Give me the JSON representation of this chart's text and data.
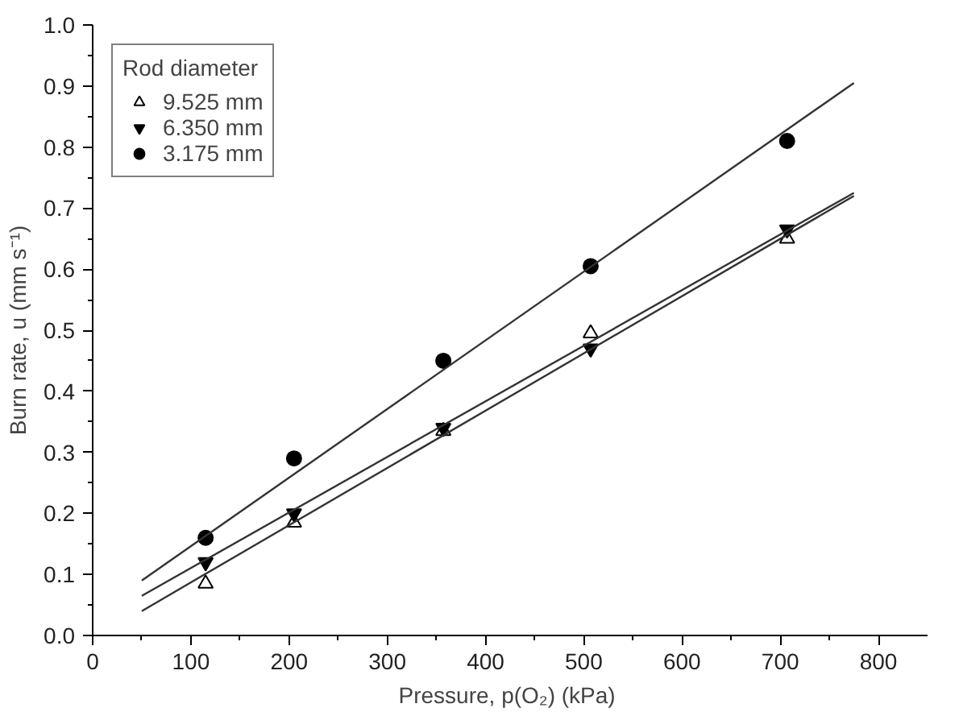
{
  "chart_data": {
    "type": "scatter",
    "xlabel": "Pressure,  p(O₂) (kPa)",
    "ylabel": "Burn rate, u (mm s⁻¹)",
    "legend_title": "Rod diameter",
    "legend": "top left",
    "grid": false,
    "xlim": [
      0,
      850
    ],
    "ylim": [
      0,
      1.0
    ],
    "xticks": [
      0,
      {
        "value": 50,
        "label": null
      },
      100,
      {
        "value": 150,
        "label": null
      },
      200,
      {
        "value": 250,
        "label": null
      },
      300,
      {
        "value": 350,
        "label": null
      },
      400,
      {
        "value": 450,
        "label": null
      },
      500,
      {
        "value": 550,
        "label": null
      },
      600,
      {
        "value": 650,
        "label": null
      },
      700,
      {
        "value": 750,
        "label": null
      },
      800
    ],
    "yticks": [
      {
        "value": 0,
        "label": "0.0"
      },
      {
        "value": 0.05,
        "label": null
      },
      {
        "value": 0.1,
        "label": "0.1"
      },
      {
        "value": 0.15,
        "label": null
      },
      {
        "value": 0.2,
        "label": "0.2"
      },
      {
        "value": 0.25,
        "label": null
      },
      {
        "value": 0.3,
        "label": "0.3"
      },
      {
        "value": 0.35,
        "label": null
      },
      {
        "value": 0.4,
        "label": "0.4"
      },
      {
        "value": 0.45,
        "label": null
      },
      {
        "value": 0.5,
        "label": "0.5"
      },
      {
        "value": 0.55,
        "label": null
      },
      {
        "value": 0.6,
        "label": "0.6"
      },
      {
        "value": 0.65,
        "label": null
      },
      {
        "value": 0.7,
        "label": "0.7"
      },
      {
        "value": 0.75,
        "label": null
      },
      {
        "value": 0.8,
        "label": "0.8"
      },
      {
        "value": 0.85,
        "label": null
      },
      {
        "value": 0.9,
        "label": "0.9"
      },
      {
        "value": 0.95,
        "label": null
      },
      {
        "value": 1.0,
        "label": "1.0"
      }
    ],
    "series": [
      {
        "name": "9.525 mm",
        "color": "#000000",
        "x": [
          115,
          205,
          357,
          507,
          707
        ],
        "values": [
          0.085,
          0.185,
          0.335,
          0.495,
          0.65
        ]
      },
      {
        "name": "6.350 mm",
        "color": "#000000",
        "x": [
          115,
          205,
          357,
          507,
          707
        ],
        "values": [
          0.12,
          0.2,
          0.34,
          0.47,
          0.665
        ]
      },
      {
        "name": "3.175 mm",
        "color": "#000000",
        "x": [
          115,
          205,
          357,
          507,
          707
        ],
        "values": [
          0.16,
          0.29,
          0.45,
          0.605,
          0.81
        ]
      },
      {
        "type": "line",
        "color": "#333333",
        "x": [
          50,
          775
        ],
        "values": [
          0.04,
          0.72
        ]
      },
      {
        "type": "line",
        "color": "#333333",
        "x": [
          50,
          775
        ],
        "values": [
          0.065,
          0.725
        ]
      },
      {
        "type": "line",
        "color": "#333333",
        "x": [
          50,
          775
        ],
        "values": [
          0.09,
          0.905
        ]
      }
    ]
  }
}
